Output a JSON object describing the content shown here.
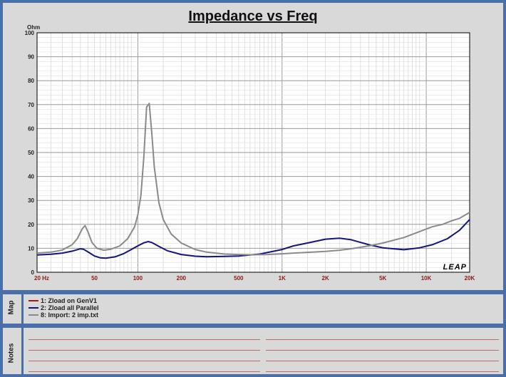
{
  "chart_data": {
    "type": "line",
    "title": "Impedance vs Freq",
    "ylabel": "Ohm",
    "xscale": "log",
    "xlim": [
      20,
      20000
    ],
    "ylim": [
      0,
      100
    ],
    "grid": true,
    "y_ticks": [
      0,
      10,
      20,
      30,
      40,
      50,
      60,
      70,
      80,
      90,
      100
    ],
    "x_ticks": [
      {
        "value": 20,
        "label": "20  Hz"
      },
      {
        "value": 50,
        "label": "50"
      },
      {
        "value": 100,
        "label": "100"
      },
      {
        "value": 200,
        "label": "200"
      },
      {
        "value": 500,
        "label": "500"
      },
      {
        "value": 1000,
        "label": "1K"
      },
      {
        "value": 2000,
        "label": "2K"
      },
      {
        "value": 5000,
        "label": "5K"
      },
      {
        "value": 10000,
        "label": "10K"
      },
      {
        "value": 20000,
        "label": "20K"
      }
    ],
    "series": [
      {
        "name": "1: Zload on GenV1",
        "color": "#a01818",
        "points": []
      },
      {
        "name": "2: Zload all Parallel",
        "color": "#14147a",
        "points": [
          [
            20,
            7.2
          ],
          [
            25,
            7.5
          ],
          [
            30,
            8.0
          ],
          [
            35,
            8.8
          ],
          [
            40,
            9.8
          ],
          [
            42,
            9.6
          ],
          [
            45,
            8.5
          ],
          [
            50,
            6.8
          ],
          [
            55,
            6.0
          ],
          [
            60,
            5.9
          ],
          [
            70,
            6.5
          ],
          [
            80,
            7.8
          ],
          [
            90,
            9.5
          ],
          [
            100,
            11.0
          ],
          [
            110,
            12.3
          ],
          [
            118,
            12.8
          ],
          [
            125,
            12.4
          ],
          [
            140,
            10.8
          ],
          [
            160,
            9.0
          ],
          [
            200,
            7.4
          ],
          [
            250,
            6.7
          ],
          [
            300,
            6.5
          ],
          [
            400,
            6.6
          ],
          [
            500,
            6.8
          ],
          [
            700,
            7.6
          ],
          [
            800,
            8.3
          ],
          [
            1000,
            9.5
          ],
          [
            1200,
            11.0
          ],
          [
            1500,
            12.2
          ],
          [
            2000,
            13.8
          ],
          [
            2500,
            14.2
          ],
          [
            3000,
            13.6
          ],
          [
            4000,
            11.5
          ],
          [
            5000,
            10.2
          ],
          [
            7000,
            9.4
          ],
          [
            9000,
            10.2
          ],
          [
            11000,
            11.5
          ],
          [
            14000,
            14.0
          ],
          [
            17000,
            17.5
          ],
          [
            20000,
            22.0
          ]
        ]
      },
      {
        "name": "8: Import: 2 imp.txt",
        "color": "#8a8a8a",
        "points": [
          [
            20,
            8.0
          ],
          [
            25,
            8.4
          ],
          [
            30,
            9.3
          ],
          [
            35,
            11.5
          ],
          [
            38,
            14.0
          ],
          [
            41,
            18.0
          ],
          [
            43,
            19.5
          ],
          [
            45,
            17.0
          ],
          [
            48,
            12.5
          ],
          [
            52,
            10.0
          ],
          [
            58,
            9.2
          ],
          [
            65,
            9.6
          ],
          [
            75,
            11.0
          ],
          [
            85,
            14.0
          ],
          [
            95,
            19.0
          ],
          [
            100,
            24.0
          ],
          [
            105,
            32.0
          ],
          [
            110,
            48.0
          ],
          [
            115,
            69.0
          ],
          [
            120,
            70.5
          ],
          [
            125,
            58.0
          ],
          [
            130,
            44.0
          ],
          [
            140,
            29.0
          ],
          [
            150,
            22.0
          ],
          [
            170,
            16.0
          ],
          [
            200,
            12.2
          ],
          [
            250,
            9.5
          ],
          [
            300,
            8.4
          ],
          [
            400,
            7.6
          ],
          [
            500,
            7.4
          ],
          [
            600,
            7.3
          ],
          [
            800,
            7.4
          ],
          [
            1000,
            7.7
          ],
          [
            1200,
            8.0
          ],
          [
            1500,
            8.3
          ],
          [
            2000,
            8.7
          ],
          [
            2500,
            9.2
          ],
          [
            3000,
            9.8
          ],
          [
            4000,
            11.0
          ],
          [
            5000,
            12.2
          ],
          [
            7000,
            14.5
          ],
          [
            9000,
            17.0
          ],
          [
            11000,
            19.0
          ],
          [
            13000,
            20.0
          ],
          [
            15000,
            21.5
          ],
          [
            17000,
            22.5
          ],
          [
            20000,
            25.0
          ]
        ]
      }
    ],
    "legend_position": "bottom panel"
  },
  "logo": "LEAP",
  "panels": {
    "map_label": "Map",
    "notes_label": "Notes"
  }
}
